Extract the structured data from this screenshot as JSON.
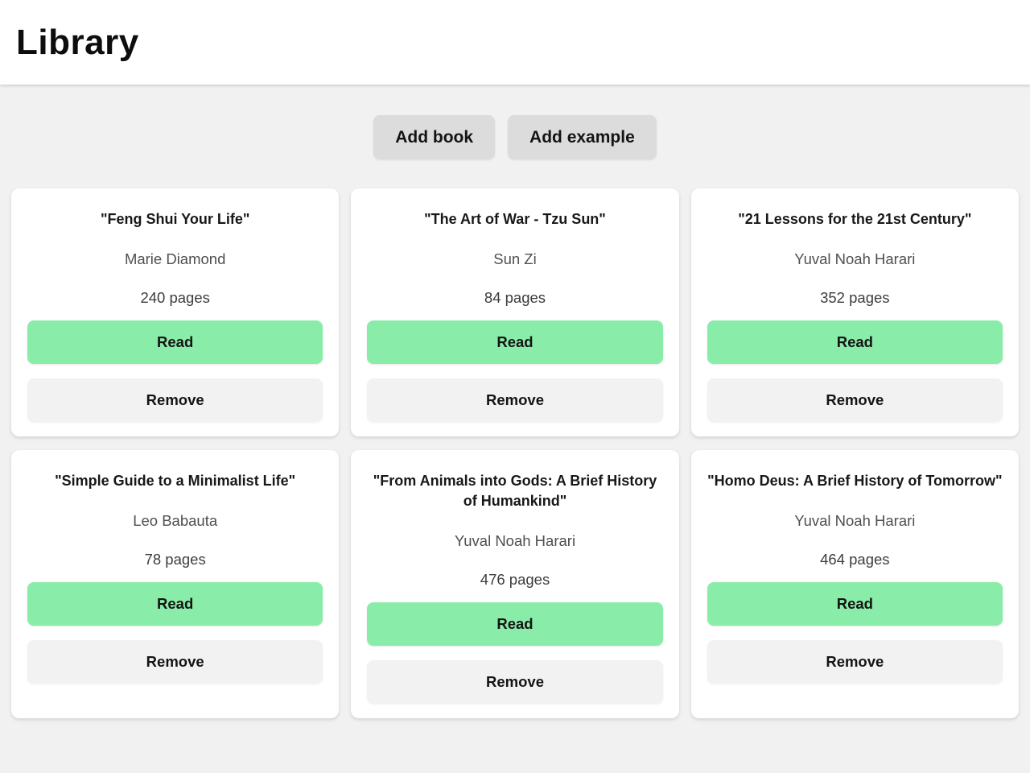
{
  "header": {
    "title": "Library"
  },
  "toolbar": {
    "add_book_label": "Add book",
    "add_example_label": "Add example"
  },
  "card_actions": {
    "read_label": "Read",
    "remove_label": "Remove"
  },
  "colors": {
    "accent_green": "#89eda9",
    "toolbar_button_bg": "#dcdcdc",
    "remove_button_bg": "#f2f2f2",
    "page_background": "#f1f1f2",
    "card_background": "#ffffff"
  },
  "books": [
    {
      "title": "\"Feng Shui Your Life\"",
      "author": "Marie Diamond",
      "pages": "240 pages"
    },
    {
      "title": "\"The Art of War - Tzu Sun\"",
      "author": "Sun Zi",
      "pages": "84 pages"
    },
    {
      "title": "\"21 Lessons for the 21st Century\"",
      "author": "Yuval Noah Harari",
      "pages": "352 pages"
    },
    {
      "title": "\"Simple Guide to a Minimalist Life\"",
      "author": "Leo Babauta",
      "pages": "78 pages"
    },
    {
      "title": "\"From Animals into Gods: A Brief History of Humankind\"",
      "author": "Yuval Noah Harari",
      "pages": "476 pages"
    },
    {
      "title": "\"Homo Deus: A Brief History of Tomorrow\"",
      "author": "Yuval Noah Harari",
      "pages": "464 pages"
    }
  ]
}
